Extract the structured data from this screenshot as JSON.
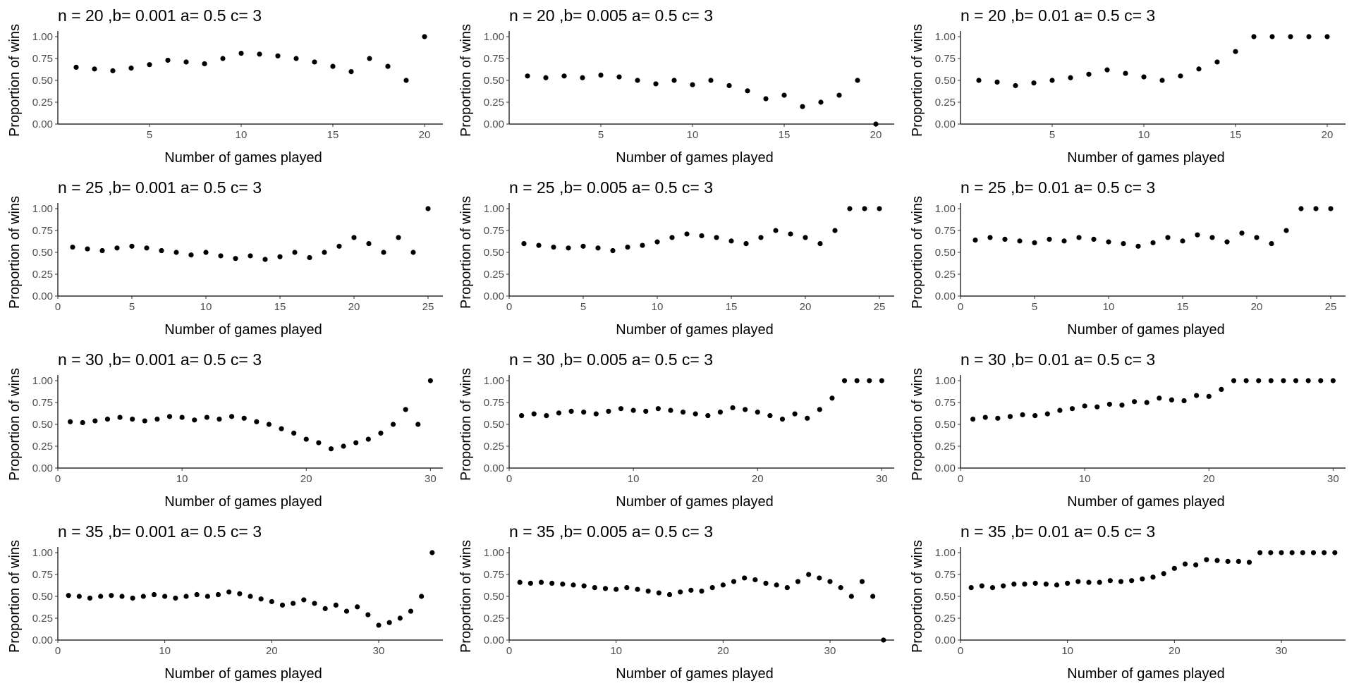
{
  "chart_data": [
    {
      "type": "scatter",
      "title": "n = 20 ,b= 0.001 a= 0.5 c= 3",
      "xlabel": "Number of games played",
      "ylabel": "Proportion of wins",
      "xticks": [
        5,
        10,
        15,
        20
      ],
      "yticks": [
        "0.00",
        "0.25",
        "0.50",
        "0.75",
        "1.00"
      ],
      "xlim": [
        0,
        21
      ],
      "ylim": [
        0,
        1
      ],
      "marker_color": "#000000",
      "x": [
        1,
        2,
        3,
        4,
        5,
        6,
        7,
        8,
        9,
        10,
        11,
        12,
        13,
        14,
        15,
        16,
        17,
        18,
        19,
        20
      ],
      "y": [
        0.65,
        0.63,
        0.61,
        0.64,
        0.68,
        0.73,
        0.71,
        0.69,
        0.75,
        0.81,
        0.8,
        0.78,
        0.75,
        0.71,
        0.66,
        0.6,
        0.75,
        0.66,
        0.5,
        1.0
      ]
    },
    {
      "type": "scatter",
      "title": "n = 20 ,b= 0.005 a= 0.5 c= 3",
      "xlabel": "Number of games played",
      "ylabel": "Proportion of wins",
      "xticks": [
        5,
        10,
        15,
        20
      ],
      "yticks": [
        "0.00",
        "0.25",
        "0.50",
        "0.75",
        "1.00"
      ],
      "xlim": [
        0,
        21
      ],
      "ylim": [
        0,
        1
      ],
      "marker_color": "#000000",
      "x": [
        1,
        2,
        3,
        4,
        5,
        6,
        7,
        8,
        9,
        10,
        11,
        12,
        13,
        14,
        15,
        16,
        17,
        18,
        19,
        20
      ],
      "y": [
        0.55,
        0.53,
        0.55,
        0.53,
        0.56,
        0.54,
        0.5,
        0.46,
        0.5,
        0.45,
        0.5,
        0.44,
        0.38,
        0.29,
        0.33,
        0.2,
        0.25,
        0.33,
        0.5,
        0.0
      ]
    },
    {
      "type": "scatter",
      "title": "n = 20 ,b= 0.01 a= 0.5 c= 3",
      "xlabel": "Number of games played",
      "ylabel": "Proportion of wins",
      "xticks": [
        5,
        10,
        15,
        20
      ],
      "yticks": [
        "0.00",
        "0.25",
        "0.50",
        "0.75",
        "1.00"
      ],
      "xlim": [
        0,
        21
      ],
      "ylim": [
        0,
        1
      ],
      "marker_color": "#000000",
      "x": [
        1,
        2,
        3,
        4,
        5,
        6,
        7,
        8,
        9,
        10,
        11,
        12,
        13,
        14,
        15,
        16,
        17,
        18,
        19,
        20
      ],
      "y": [
        0.5,
        0.48,
        0.44,
        0.47,
        0.5,
        0.53,
        0.57,
        0.62,
        0.58,
        0.54,
        0.5,
        0.55,
        0.63,
        0.71,
        0.83,
        1.0,
        1.0,
        1.0,
        1.0,
        1.0
      ]
    },
    {
      "type": "scatter",
      "title": "n = 25 ,b= 0.001 a= 0.5 c= 3",
      "xlabel": "Number of games played",
      "ylabel": "Proportion of wins",
      "xticks": [
        0,
        5,
        10,
        15,
        20,
        25
      ],
      "yticks": [
        "0.00",
        "0.25",
        "0.50",
        "0.75",
        "1.00"
      ],
      "xlim": [
        0,
        26
      ],
      "ylim": [
        0,
        1
      ],
      "marker_color": "#000000",
      "x": [
        1,
        2,
        3,
        4,
        5,
        6,
        7,
        8,
        9,
        10,
        11,
        12,
        13,
        14,
        15,
        16,
        17,
        18,
        19,
        20,
        21,
        22,
        23,
        24,
        25
      ],
      "y": [
        0.56,
        0.54,
        0.52,
        0.55,
        0.57,
        0.55,
        0.52,
        0.5,
        0.47,
        0.5,
        0.46,
        0.43,
        0.46,
        0.42,
        0.45,
        0.5,
        0.44,
        0.5,
        0.57,
        0.67,
        0.6,
        0.5,
        0.67,
        0.5,
        1.0
      ]
    },
    {
      "type": "scatter",
      "title": "n = 25 ,b= 0.005 a= 0.5 c= 3",
      "xlabel": "Number of games played",
      "ylabel": "Proportion of wins",
      "xticks": [
        0,
        5,
        10,
        15,
        20,
        25
      ],
      "yticks": [
        "0.00",
        "0.25",
        "0.50",
        "0.75",
        "1.00"
      ],
      "xlim": [
        0,
        26
      ],
      "ylim": [
        0,
        1
      ],
      "marker_color": "#000000",
      "x": [
        1,
        2,
        3,
        4,
        5,
        6,
        7,
        8,
        9,
        10,
        11,
        12,
        13,
        14,
        15,
        16,
        17,
        18,
        19,
        20,
        21,
        22,
        23,
        24,
        25
      ],
      "y": [
        0.6,
        0.58,
        0.56,
        0.55,
        0.57,
        0.55,
        0.52,
        0.56,
        0.58,
        0.62,
        0.67,
        0.71,
        0.69,
        0.67,
        0.63,
        0.6,
        0.67,
        0.75,
        0.71,
        0.67,
        0.6,
        0.75,
        1.0,
        1.0,
        1.0
      ]
    },
    {
      "type": "scatter",
      "title": "n = 25 ,b= 0.01 a= 0.5 c= 3",
      "xlabel": "Number of games played",
      "ylabel": "Proportion of wins",
      "xticks": [
        0,
        5,
        10,
        15,
        20,
        25
      ],
      "yticks": [
        "0.00",
        "0.25",
        "0.50",
        "0.75",
        "1.00"
      ],
      "xlim": [
        0,
        26
      ],
      "ylim": [
        0,
        1
      ],
      "marker_color": "#000000",
      "x": [
        1,
        2,
        3,
        4,
        5,
        6,
        7,
        8,
        9,
        10,
        11,
        12,
        13,
        14,
        15,
        16,
        17,
        18,
        19,
        20,
        21,
        22,
        23,
        24,
        25
      ],
      "y": [
        0.64,
        0.67,
        0.65,
        0.63,
        0.61,
        0.65,
        0.63,
        0.67,
        0.65,
        0.62,
        0.6,
        0.57,
        0.61,
        0.67,
        0.63,
        0.7,
        0.67,
        0.62,
        0.72,
        0.67,
        0.6,
        0.75,
        1.0,
        1.0,
        1.0
      ]
    },
    {
      "type": "scatter",
      "title": "n = 30 ,b= 0.001 a= 0.5 c= 3",
      "xlabel": "Number of games played",
      "ylabel": "Proportion of wins",
      "xticks": [
        0,
        10,
        20,
        30
      ],
      "yticks": [
        "0.00",
        "0.25",
        "0.50",
        "0.75",
        "1.00"
      ],
      "xlim": [
        0,
        31
      ],
      "ylim": [
        0,
        1
      ],
      "marker_color": "#000000",
      "x": [
        1,
        2,
        3,
        4,
        5,
        6,
        7,
        8,
        9,
        10,
        11,
        12,
        13,
        14,
        15,
        16,
        17,
        18,
        19,
        20,
        21,
        22,
        23,
        24,
        25,
        26,
        27,
        28,
        29,
        30
      ],
      "y": [
        0.53,
        0.52,
        0.54,
        0.56,
        0.58,
        0.56,
        0.54,
        0.56,
        0.59,
        0.58,
        0.55,
        0.58,
        0.56,
        0.59,
        0.57,
        0.53,
        0.5,
        0.45,
        0.4,
        0.33,
        0.29,
        0.22,
        0.25,
        0.29,
        0.33,
        0.4,
        0.5,
        0.67,
        0.5,
        1.0
      ]
    },
    {
      "type": "scatter",
      "title": "n = 30 ,b= 0.005 a= 0.5 c= 3",
      "xlabel": "Number of games played",
      "ylabel": "Proportion of wins",
      "xticks": [
        0,
        10,
        20,
        30
      ],
      "yticks": [
        "0.00",
        "0.25",
        "0.50",
        "0.75",
        "1.00"
      ],
      "xlim": [
        0,
        31
      ],
      "ylim": [
        0,
        1
      ],
      "marker_color": "#000000",
      "x": [
        1,
        2,
        3,
        4,
        5,
        6,
        7,
        8,
        9,
        10,
        11,
        12,
        13,
        14,
        15,
        16,
        17,
        18,
        19,
        20,
        21,
        22,
        23,
        24,
        25,
        26,
        27,
        28,
        29,
        30
      ],
      "y": [
        0.6,
        0.62,
        0.6,
        0.63,
        0.65,
        0.64,
        0.62,
        0.65,
        0.68,
        0.66,
        0.65,
        0.68,
        0.66,
        0.64,
        0.62,
        0.6,
        0.64,
        0.69,
        0.67,
        0.64,
        0.6,
        0.56,
        0.62,
        0.57,
        0.67,
        0.8,
        1.0,
        1.0,
        1.0,
        1.0
      ]
    },
    {
      "type": "scatter",
      "title": "n = 30 ,b= 0.01 a= 0.5 c= 3",
      "xlabel": "Number of games played",
      "ylabel": "Proportion of wins",
      "xticks": [
        0,
        10,
        20,
        30
      ],
      "yticks": [
        "0.00",
        "0.25",
        "0.50",
        "0.75",
        "1.00"
      ],
      "xlim": [
        0,
        31
      ],
      "ylim": [
        0,
        1
      ],
      "marker_color": "#000000",
      "x": [
        1,
        2,
        3,
        4,
        5,
        6,
        7,
        8,
        9,
        10,
        11,
        12,
        13,
        14,
        15,
        16,
        17,
        18,
        19,
        20,
        21,
        22,
        23,
        24,
        25,
        26,
        27,
        28,
        29,
        30
      ],
      "y": [
        0.56,
        0.58,
        0.57,
        0.59,
        0.61,
        0.6,
        0.62,
        0.66,
        0.68,
        0.71,
        0.7,
        0.73,
        0.72,
        0.76,
        0.75,
        0.8,
        0.78,
        0.77,
        0.83,
        0.82,
        0.9,
        1.0,
        1.0,
        1.0,
        1.0,
        1.0,
        1.0,
        1.0,
        1.0,
        1.0
      ]
    },
    {
      "type": "scatter",
      "title": "n = 35 ,b= 0.001 a= 0.5 c= 3",
      "xlabel": "Number of games played",
      "ylabel": "Proportion of wins",
      "xticks": [
        0,
        10,
        20,
        30
      ],
      "yticks": [
        "0.00",
        "0.25",
        "0.50",
        "0.75",
        "1.00"
      ],
      "xlim": [
        0,
        36
      ],
      "ylim": [
        0,
        1
      ],
      "marker_color": "#000000",
      "x": [
        1,
        2,
        3,
        4,
        5,
        6,
        7,
        8,
        9,
        10,
        11,
        12,
        13,
        14,
        15,
        16,
        17,
        18,
        19,
        20,
        21,
        22,
        23,
        24,
        25,
        26,
        27,
        28,
        29,
        30,
        31,
        32,
        33,
        34,
        35
      ],
      "y": [
        0.51,
        0.5,
        0.48,
        0.5,
        0.51,
        0.5,
        0.48,
        0.5,
        0.52,
        0.5,
        0.48,
        0.5,
        0.52,
        0.5,
        0.52,
        0.55,
        0.53,
        0.5,
        0.47,
        0.44,
        0.4,
        0.42,
        0.46,
        0.42,
        0.36,
        0.4,
        0.33,
        0.38,
        0.29,
        0.17,
        0.2,
        0.25,
        0.33,
        0.5,
        1.0
      ]
    },
    {
      "type": "scatter",
      "title": "n = 35 ,b= 0.005 a= 0.5 c= 3",
      "xlabel": "Number of games played",
      "ylabel": "Proportion of wins",
      "xticks": [
        0,
        10,
        20,
        30
      ],
      "yticks": [
        "0.00",
        "0.25",
        "0.50",
        "0.75",
        "1.00"
      ],
      "xlim": [
        0,
        36
      ],
      "ylim": [
        0,
        1
      ],
      "marker_color": "#000000",
      "x": [
        1,
        2,
        3,
        4,
        5,
        6,
        7,
        8,
        9,
        10,
        11,
        12,
        13,
        14,
        15,
        16,
        17,
        18,
        19,
        20,
        21,
        22,
        23,
        24,
        25,
        26,
        27,
        28,
        29,
        30,
        31,
        32,
        33,
        34,
        35
      ],
      "y": [
        0.66,
        0.65,
        0.66,
        0.65,
        0.64,
        0.63,
        0.62,
        0.6,
        0.59,
        0.58,
        0.6,
        0.58,
        0.56,
        0.54,
        0.52,
        0.55,
        0.57,
        0.56,
        0.6,
        0.63,
        0.67,
        0.71,
        0.69,
        0.65,
        0.63,
        0.6,
        0.67,
        0.75,
        0.71,
        0.67,
        0.6,
        0.5,
        0.67,
        0.5,
        0.0
      ]
    },
    {
      "type": "scatter",
      "title": "n = 35 ,b= 0.01 a= 0.5 c= 3",
      "xlabel": "Number of games played",
      "ylabel": "Proportion of wins",
      "xticks": [
        0,
        10,
        20,
        30
      ],
      "yticks": [
        "0.00",
        "0.25",
        "0.50",
        "0.75",
        "1.00"
      ],
      "xlim": [
        0,
        36
      ],
      "ylim": [
        0,
        1
      ],
      "marker_color": "#000000",
      "x": [
        1,
        2,
        3,
        4,
        5,
        6,
        7,
        8,
        9,
        10,
        11,
        12,
        13,
        14,
        15,
        16,
        17,
        18,
        19,
        20,
        21,
        22,
        23,
        24,
        25,
        26,
        27,
        28,
        29,
        30,
        31,
        32,
        33,
        34,
        35
      ],
      "y": [
        0.6,
        0.62,
        0.6,
        0.62,
        0.64,
        0.64,
        0.65,
        0.64,
        0.63,
        0.65,
        0.67,
        0.66,
        0.66,
        0.68,
        0.67,
        0.68,
        0.7,
        0.72,
        0.76,
        0.82,
        0.87,
        0.86,
        0.92,
        0.91,
        0.9,
        0.9,
        0.89,
        1.0,
        1.0,
        1.0,
        1.0,
        1.0,
        1.0,
        1.0,
        1.0
      ]
    }
  ]
}
